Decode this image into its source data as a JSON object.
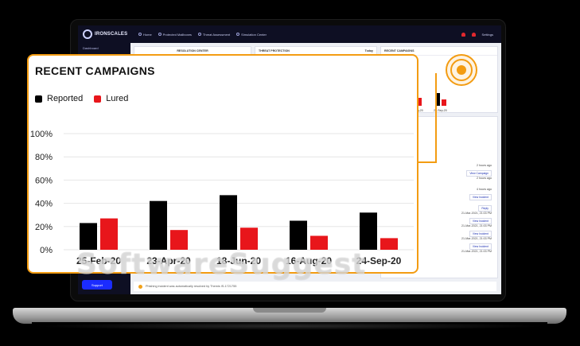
{
  "app": {
    "logo_text": "IRONSCALES",
    "nav": [
      "Home",
      "Protected Mailboxes",
      "Threat Assessment",
      "Simulation Center"
    ],
    "settings_label": "Settings"
  },
  "sidebar": {
    "label": "Dashboard",
    "support_label": "Support"
  },
  "panels": {
    "resolution_center": "RESOLUTION CENTER",
    "threat_protection": "THREAT PROTECTION",
    "threat_protection_filter": "Today",
    "recent_campaigns": "RECENT CAMPAIGNS"
  },
  "mini_chart": {
    "labels": [
      "23-Apr-20",
      "16-Aug-20",
      "24-Sep-20"
    ]
  },
  "feed": {
    "rows": [
      {
        "time": "2 hours ago",
        "button": "View Campaign"
      },
      {
        "time": "2 hours ago",
        "button": ""
      },
      {
        "time": "4 hours ago",
        "button": "View Incident"
      },
      {
        "time": "",
        "button": "Reply"
      },
      {
        "time": "21-Mar-2021, 21:03 PM",
        "button": "View Incident"
      },
      {
        "time": "21-Mar-2021, 21:03 PM",
        "button": "View Incident"
      },
      {
        "time": "21-Mar-2021, 21:03 PM",
        "button": "View Incident"
      },
      {
        "time": "21-Mar-2021, 21:03 PM",
        "button": ""
      }
    ]
  },
  "footer": {
    "text": "Phishing incident was automatically resolved by Themis IS-1721755"
  },
  "card": {
    "title": "RECENT CAMPAIGNS",
    "legend": [
      {
        "label": "Reported",
        "color": "#000000"
      },
      {
        "label": "Lured",
        "color": "#e8161b"
      }
    ]
  },
  "chart_data": {
    "type": "bar",
    "title": "RECENT CAMPAIGNS",
    "categories": [
      "25-Feb-20",
      "23-Apr-20",
      "18-Jun-20",
      "16-Aug-20",
      "24-Sep-20"
    ],
    "series": [
      {
        "name": "Reported",
        "color": "#000000",
        "values": [
          23,
          42,
          47,
          25,
          32
        ]
      },
      {
        "name": "Lured",
        "color": "#e8161b",
        "values": [
          27,
          17,
          19,
          12,
          10
        ]
      }
    ],
    "ylim": [
      0,
      100
    ],
    "yticks": [
      "0%",
      "20%",
      "40%",
      "60%",
      "80%",
      "100%"
    ],
    "grid": true,
    "legend_position": "top-left"
  },
  "watermark": {
    "text": "SoftwareSuggest",
    "suffix": ".com"
  },
  "colors": {
    "accent": "#f39c12",
    "brand_blue": "#1b2cff",
    "reported": "#000000",
    "lured": "#e8161b"
  }
}
